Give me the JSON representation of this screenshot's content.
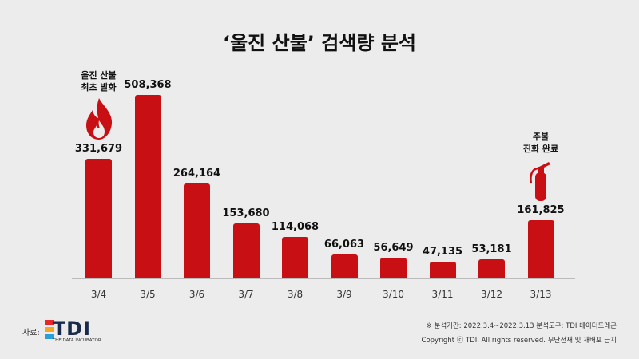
{
  "chart_data": {
    "type": "bar",
    "title": "‘울진 산불’ 검색량 분석",
    "categories": [
      "3/4",
      "3/5",
      "3/6",
      "3/7",
      "3/8",
      "3/9",
      "3/10",
      "3/11",
      "3/12",
      "3/13"
    ],
    "values": [
      331679,
      508368,
      264164,
      153680,
      114068,
      66063,
      56649,
      47135,
      53181,
      161825
    ],
    "value_labels": [
      "331,679",
      "508,368",
      "264,164",
      "153,680",
      "114,068",
      "66,063",
      "56,649",
      "47,135",
      "53,181",
      "161,825"
    ],
    "ylim": [
      0,
      520000
    ],
    "grid": false,
    "bar_color": "#c80f14",
    "annotations": [
      {
        "category": "3/4",
        "lines": [
          "울진 산불",
          "최초 발화"
        ],
        "icon": "fire-icon"
      },
      {
        "category": "3/13",
        "lines": [
          "주불",
          "진화 완료"
        ],
        "icon": "fire-extinguisher-icon"
      }
    ]
  },
  "source": {
    "label": "자료:",
    "logo_text": "TDI",
    "logo_tagline": "THE DATA INCUBATOR",
    "logo_colors": [
      "#e8262b",
      "#f5a623",
      "#2a9fd8"
    ]
  },
  "footer": {
    "period": "※ 분석기간: 2022.3.4~2022.3.13  분석도구: TDI 데이터드레곤",
    "copyright": "Copyright ⓒ TDI. All rights reserved. 무단전재 및 재배포 금지"
  }
}
